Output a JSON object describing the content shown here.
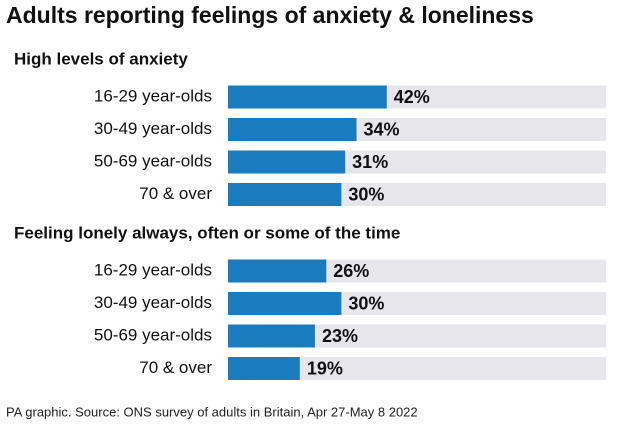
{
  "title": "Adults reporting feelings of anxiety & loneliness",
  "source": "PA graphic. Source: ONS survey of adults in Britain, Apr 27-May 8 2022",
  "chart_data": [
    {
      "type": "bar",
      "orientation": "horizontal",
      "title": "High levels of anxiety",
      "categories": [
        "16-29 year-olds",
        "30-49 year-olds",
        "50-69 year-olds",
        "70 & over"
      ],
      "values": [
        42,
        34,
        31,
        30
      ],
      "value_labels": [
        "42%",
        "34%",
        "31%",
        "30%"
      ],
      "color": "#1a7bbf",
      "xlim": [
        0,
        100
      ]
    },
    {
      "type": "bar",
      "orientation": "horizontal",
      "title": "Feeling lonely always, often or some of the time",
      "categories": [
        "16-29 year-olds",
        "30-49 year-olds",
        "50-69 year-olds",
        "70 & over"
      ],
      "values": [
        26,
        30,
        23,
        19
      ],
      "value_labels": [
        "26%",
        "30%",
        "23%",
        "19%"
      ],
      "color": "#1a7bbf",
      "xlim": [
        0,
        100
      ]
    }
  ]
}
